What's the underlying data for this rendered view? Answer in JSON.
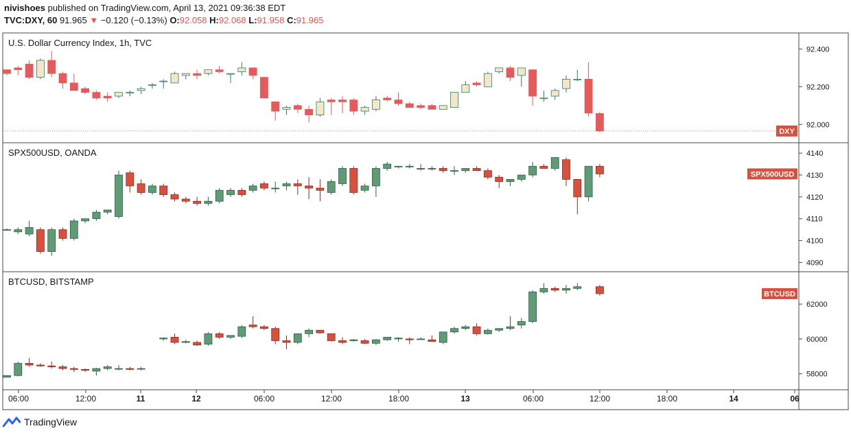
{
  "header": {
    "author": "nivishoes",
    "published_text": "published on TradingView.com, April 13, 2021 09:36:38 EDT",
    "symbol": "TVC:DXY, 60",
    "last": "91.965",
    "change": "−0.120 (−0.13%)",
    "o_label": "O:",
    "o_value": "92.058",
    "h_label": "H:",
    "h_value": "92.068",
    "l_label": "L:",
    "l_value": "91.958",
    "c_label": "C:",
    "c_value": "91.965"
  },
  "footer": {
    "brand": "TradingView"
  },
  "colors": {
    "dxy_up_body": "#f5e6c8",
    "dxy_up_border": "#2e7d6b",
    "dxy_down": "#e55a5a",
    "up": "#5f9b76",
    "up_border": "#2f5e41",
    "down": "#d9503f",
    "down_border": "#8c2a1e",
    "label_bg": "#d9503f"
  },
  "chart_data": [
    {
      "type": "candlestick",
      "title": "U.S. Dollar Currency Index, 1h, TVC",
      "price_label": "DXY",
      "yticks": [
        "92.400",
        "92.200",
        "92.000"
      ],
      "ylim": [
        91.95,
        92.46
      ],
      "last_price": 91.965,
      "candles": [
        [
          92.29,
          92.29,
          92.26,
          92.27
        ],
        [
          92.3,
          92.31,
          92.26,
          92.29
        ],
        [
          92.32,
          92.34,
          92.24,
          92.25
        ],
        [
          92.25,
          92.35,
          92.24,
          92.34
        ],
        [
          92.34,
          92.39,
          92.25,
          92.27
        ],
        [
          92.27,
          92.28,
          92.19,
          92.22
        ],
        [
          92.22,
          92.27,
          92.18,
          92.18
        ],
        [
          92.19,
          92.2,
          92.16,
          92.17
        ],
        [
          92.17,
          92.18,
          92.13,
          92.14
        ],
        [
          92.15,
          92.17,
          92.12,
          92.14
        ],
        [
          92.15,
          92.17,
          92.14,
          92.17
        ],
        [
          92.17,
          92.18,
          92.15,
          92.17
        ],
        [
          92.18,
          92.2,
          92.16,
          92.19
        ],
        [
          92.21,
          92.22,
          92.19,
          92.21
        ],
        [
          92.23,
          92.24,
          92.19,
          92.23
        ],
        [
          92.22,
          92.28,
          92.22,
          92.27
        ],
        [
          92.26,
          92.27,
          92.24,
          92.27
        ],
        [
          92.27,
          92.29,
          92.24,
          92.26
        ],
        [
          92.27,
          92.29,
          92.26,
          92.29
        ],
        [
          92.29,
          92.31,
          92.27,
          92.28
        ],
        [
          92.27,
          92.27,
          92.22,
          92.27
        ],
        [
          92.28,
          92.33,
          92.26,
          92.3
        ],
        [
          92.3,
          92.3,
          92.24,
          92.26
        ],
        [
          92.25,
          92.25,
          92.14,
          92.14
        ],
        [
          92.12,
          92.12,
          92.02,
          92.07
        ],
        [
          92.08,
          92.1,
          92.05,
          92.09
        ],
        [
          92.1,
          92.11,
          92.06,
          92.08
        ],
        [
          92.08,
          92.1,
          92.01,
          92.05
        ],
        [
          92.05,
          92.14,
          92.04,
          92.12
        ],
        [
          92.13,
          92.14,
          92.05,
          92.12
        ],
        [
          92.13,
          92.15,
          92.06,
          92.12
        ],
        [
          92.13,
          92.14,
          92.05,
          92.07
        ],
        [
          92.07,
          92.1,
          92.05,
          92.09
        ],
        [
          92.08,
          92.15,
          92.07,
          92.13
        ],
        [
          92.14,
          92.15,
          92.12,
          92.13
        ],
        [
          92.13,
          92.17,
          92.1,
          92.11
        ],
        [
          92.11,
          92.12,
          92.09,
          92.09
        ],
        [
          92.1,
          92.11,
          92.08,
          92.09
        ],
        [
          92.1,
          92.11,
          92.08,
          92.08
        ],
        [
          92.08,
          92.1,
          92.08,
          92.1
        ],
        [
          92.09,
          92.17,
          92.09,
          92.17
        ],
        [
          92.17,
          92.23,
          92.17,
          92.21
        ],
        [
          92.22,
          92.23,
          92.2,
          92.21
        ],
        [
          92.2,
          92.28,
          92.2,
          92.27
        ],
        [
          92.28,
          92.3,
          92.27,
          92.3
        ],
        [
          92.3,
          92.31,
          92.23,
          92.25
        ],
        [
          92.26,
          92.3,
          92.2,
          92.3
        ],
        [
          92.29,
          92.29,
          92.1,
          92.15
        ],
        [
          92.14,
          92.18,
          92.12,
          92.14
        ],
        [
          92.15,
          92.19,
          92.13,
          92.18
        ],
        [
          92.19,
          92.26,
          92.17,
          92.24
        ],
        [
          92.24,
          92.29,
          92.23,
          92.24
        ],
        [
          92.24,
          92.33,
          92.04,
          92.06
        ],
        [
          92.058,
          92.068,
          91.958,
          91.965
        ]
      ]
    },
    {
      "type": "candlestick",
      "title": "SPX500USD, OANDA",
      "price_label": "SPX500USD",
      "yticks": [
        "4140",
        "4130",
        "4120",
        "4110",
        "4100",
        "4090"
      ],
      "ylim": [
        4087,
        4143.5
      ],
      "last_price": 4130.5,
      "candles": [
        [
          4105,
          4105.5,
          4104.5,
          4105
        ],
        [
          4104,
          4106,
          4103,
          4105
        ],
        [
          4103,
          4109,
          4102,
          4106
        ],
        [
          4105,
          4106,
          4094,
          4095
        ],
        [
          4095,
          4106,
          4093,
          4105
        ],
        [
          4105,
          4106,
          4100,
          4101
        ],
        [
          4101,
          4110,
          4100,
          4109
        ],
        [
          4109,
          4110,
          4108,
          4110
        ],
        [
          4110,
          4114,
          4109,
          4113
        ],
        [
          4113,
          4114,
          4112,
          4114
        ],
        [
          4111,
          4132,
          4110,
          4130
        ],
        [
          4131,
          4132,
          4122,
          4125
        ],
        [
          4126,
          4128,
          4121,
          4122
        ],
        [
          4122,
          4126,
          4121,
          4125
        ],
        [
          4125,
          4126,
          4120,
          4121
        ],
        [
          4121,
          4122,
          4118,
          4119
        ],
        [
          4119,
          4120,
          4117,
          4118
        ],
        [
          4118,
          4120,
          4116,
          4117
        ],
        [
          4117,
          4120,
          4116,
          4118
        ],
        [
          4118,
          4124,
          4117,
          4123
        ],
        [
          4121,
          4124,
          4120,
          4123
        ],
        [
          4123,
          4124,
          4120,
          4121
        ],
        [
          4123,
          4126,
          4122,
          4125
        ],
        [
          4126,
          4127,
          4123,
          4124
        ],
        [
          4124,
          4127,
          4122,
          4124
        ],
        [
          4125,
          4127,
          4123,
          4126
        ],
        [
          4126,
          4128,
          4121,
          4125
        ],
        [
          4125,
          4129,
          4119,
          4124
        ],
        [
          4124,
          4128,
          4118,
          4123
        ],
        [
          4122,
          4128,
          4121,
          4127
        ],
        [
          4126,
          4134,
          4125,
          4133
        ],
        [
          4133,
          4134,
          4121,
          4122
        ],
        [
          4123,
          4126,
          4122,
          4125
        ],
        [
          4125,
          4134,
          4120,
          4133
        ],
        [
          4133,
          4136,
          4132,
          4135
        ],
        [
          4134,
          4134,
          4133,
          4134
        ],
        [
          4134,
          4135,
          4133,
          4134
        ],
        [
          4133,
          4135,
          4132,
          4133
        ],
        [
          4133,
          4134,
          4132,
          4133
        ],
        [
          4133,
          4134,
          4131,
          4132
        ],
        [
          4132,
          4134,
          4130,
          4132
        ],
        [
          4132,
          4133,
          4131,
          4133
        ],
        [
          4133,
          4134,
          4132,
          4132
        ],
        [
          4132,
          4133,
          4128,
          4129
        ],
        [
          4129,
          4130,
          4124,
          4127
        ],
        [
          4127,
          4128,
          4125,
          4128
        ],
        [
          4128,
          4130,
          4127,
          4130
        ],
        [
          4130,
          4136,
          4129,
          4134
        ],
        [
          4134,
          4135,
          4133,
          4133
        ],
        [
          4133,
          4138,
          4132,
          4138
        ],
        [
          4137,
          4138,
          4125,
          4128
        ],
        [
          4128,
          4128,
          4112,
          4120
        ],
        [
          4120,
          4134,
          4118,
          4134
        ],
        [
          4134,
          4135,
          4129,
          4130.5
        ]
      ]
    },
    {
      "type": "candlestick",
      "title": "BTCUSD, BITSTAMP",
      "price_label": "BTCUSD",
      "yticks": [
        "62000",
        "60000",
        "58000"
      ],
      "ylim": [
        57200,
        63700
      ],
      "last_price": 62600,
      "candles": [
        [
          57800,
          57900,
          57800,
          57900
        ],
        [
          57900,
          58700,
          57850,
          58600
        ],
        [
          58600,
          58900,
          58400,
          58500
        ],
        [
          58500,
          58600,
          58400,
          58450
        ],
        [
          58450,
          58700,
          58300,
          58400
        ],
        [
          58400,
          58500,
          58200,
          58300
        ],
        [
          58300,
          58400,
          58100,
          58250
        ],
        [
          58250,
          58300,
          58100,
          58200
        ],
        [
          58150,
          58350,
          57900,
          58300
        ],
        [
          58300,
          58500,
          58200,
          58400
        ],
        [
          58300,
          58500,
          58200,
          58300
        ],
        [
          58300,
          58400,
          58200,
          58250
        ],
        [
          58300,
          58400,
          58200,
          58300
        ],
        [
          null,
          null,
          null,
          null
        ],
        [
          60000,
          60100,
          59900,
          60050
        ],
        [
          60100,
          60300,
          59700,
          59800
        ],
        [
          59800,
          59950,
          59750,
          59850
        ],
        [
          59800,
          59900,
          59600,
          59650
        ],
        [
          59700,
          60400,
          59600,
          60300
        ],
        [
          60300,
          60400,
          60000,
          60100
        ],
        [
          60100,
          60200,
          60000,
          60200
        ],
        [
          60150,
          60800,
          60050,
          60700
        ],
        [
          60800,
          61300,
          60600,
          60700
        ],
        [
          60700,
          60800,
          60500,
          60600
        ],
        [
          60600,
          60700,
          59700,
          59900
        ],
        [
          59900,
          60200,
          59400,
          59800
        ],
        [
          59800,
          60300,
          59700,
          60300
        ],
        [
          60300,
          60600,
          60100,
          60500
        ],
        [
          60500,
          60500,
          60300,
          60350
        ],
        [
          60300,
          60300,
          59850,
          59900
        ],
        [
          59900,
          60100,
          59700,
          59800
        ],
        [
          59900,
          60000,
          59850,
          59950
        ],
        [
          59900,
          60000,
          59700,
          59750
        ],
        [
          59750,
          60000,
          59650,
          59950
        ],
        [
          59950,
          60100,
          59900,
          60100
        ],
        [
          60000,
          60100,
          59850,
          60050
        ],
        [
          60000,
          60100,
          59700,
          59950
        ],
        [
          60000,
          60100,
          59950,
          60000
        ],
        [
          59950,
          60200,
          59850,
          59850
        ],
        [
          59800,
          60400,
          59700,
          60400
        ],
        [
          60400,
          60700,
          60300,
          60600
        ],
        [
          60600,
          60800,
          60500,
          60700
        ],
        [
          60700,
          60900,
          60200,
          60300
        ],
        [
          60300,
          60600,
          60250,
          60500
        ],
        [
          60500,
          60600,
          60400,
          60600
        ],
        [
          60600,
          61300,
          60500,
          60700
        ],
        [
          60800,
          61200,
          60600,
          61000
        ],
        [
          61000,
          62800,
          60900,
          62700
        ],
        [
          62700,
          63200,
          62600,
          62900
        ],
        [
          62900,
          63000,
          62700,
          62800
        ],
        [
          62800,
          63100,
          62600,
          62900
        ],
        [
          62900,
          63200,
          62800,
          63000
        ],
        [
          null,
          null,
          null,
          null
        ],
        [
          63000,
          63100,
          62500,
          62600
        ]
      ]
    }
  ],
  "x_ticks": [
    "06:00",
    "12:00",
    "11",
    "12",
    "06:00",
    "12:00",
    "18:00",
    "13",
    "06:00",
    "12:00",
    "18:00",
    "14",
    "06"
  ]
}
